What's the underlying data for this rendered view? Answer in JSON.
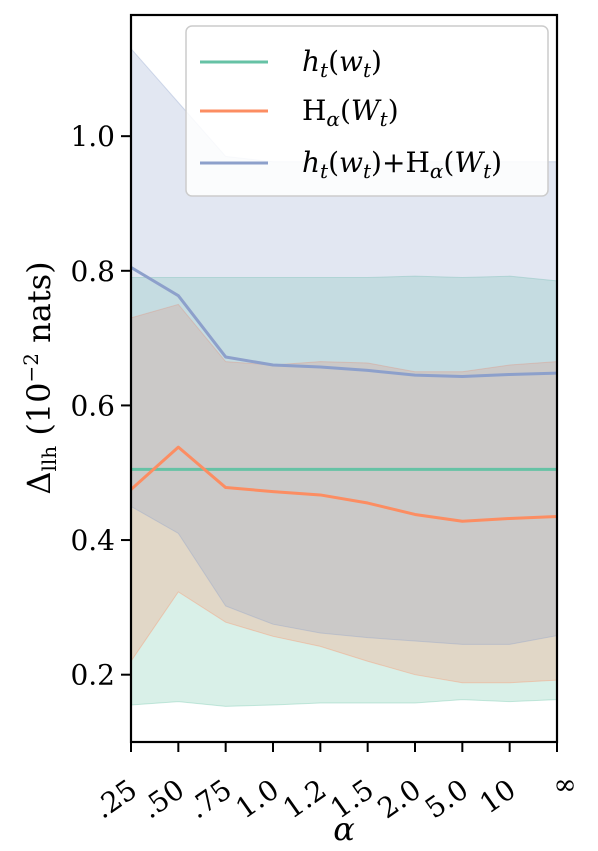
{
  "chart_data": {
    "type": "line",
    "title": "",
    "xlabel": "α",
    "ylabel": "Δ_llh (10^-2 nats)",
    "ylabel_parts": {
      "main": "Δ",
      "sub": "llh",
      "units": " (10",
      "exp": "−2",
      "tail": " nats)"
    },
    "categories": [
      ".25",
      ".50",
      ".75",
      "1.0",
      "1.2",
      "1.5",
      "2.0",
      "5.0",
      "10",
      "∞"
    ],
    "ylim": [
      0.1,
      1.18
    ],
    "yticks": [
      0.2,
      0.4,
      0.6,
      0.8,
      1.0
    ],
    "ytick_labels": [
      "0.2",
      "0.4",
      "0.6",
      "0.8",
      "1.0"
    ],
    "grid": false,
    "legend_position": "top-right",
    "series": [
      {
        "key": "h",
        "legend": {
          "f": "h",
          "fsub": "t",
          "arg": "w",
          "argsub": "t"
        },
        "color": "#66c2a5",
        "values": [
          0.505,
          0.505,
          0.505,
          0.505,
          0.505,
          0.505,
          0.505,
          0.505,
          0.505,
          0.505
        ],
        "lower": [
          0.155,
          0.16,
          0.153,
          0.155,
          0.158,
          0.158,
          0.158,
          0.163,
          0.16,
          0.163
        ],
        "upper": [
          0.79,
          0.79,
          0.79,
          0.79,
          0.79,
          0.79,
          0.792,
          0.79,
          0.792,
          0.785
        ]
      },
      {
        "key": "H",
        "legend": {
          "f": "H",
          "fsub": "α",
          "arg": "W",
          "argsub": "t"
        },
        "color": "#fc8d62",
        "values": [
          0.475,
          0.538,
          0.478,
          0.472,
          0.467,
          0.455,
          0.438,
          0.428,
          0.432,
          0.435
        ],
        "lower": [
          0.22,
          0.323,
          0.278,
          0.257,
          0.242,
          0.22,
          0.2,
          0.188,
          0.188,
          0.192
        ],
        "upper": [
          0.73,
          0.75,
          0.665,
          0.66,
          0.665,
          0.663,
          0.65,
          0.65,
          0.66,
          0.665
        ]
      },
      {
        "key": "sum",
        "legend": {
          "f": "h",
          "fsub": "t",
          "arg": "w",
          "argsub": "t",
          "plus": "+",
          "f2": "H",
          "f2sub": "α",
          "arg2": "W",
          "arg2sub": "t"
        },
        "color": "#8da0cb",
        "values": [
          0.805,
          0.763,
          0.672,
          0.66,
          0.657,
          0.652,
          0.645,
          0.643,
          0.646,
          0.648
        ],
        "lower": [
          0.45,
          0.41,
          0.302,
          0.275,
          0.262,
          0.255,
          0.25,
          0.245,
          0.245,
          0.258
        ],
        "upper": [
          1.13,
          1.05,
          0.97,
          0.962,
          0.962,
          0.962,
          0.962,
          0.962,
          0.962,
          0.962
        ]
      }
    ]
  }
}
